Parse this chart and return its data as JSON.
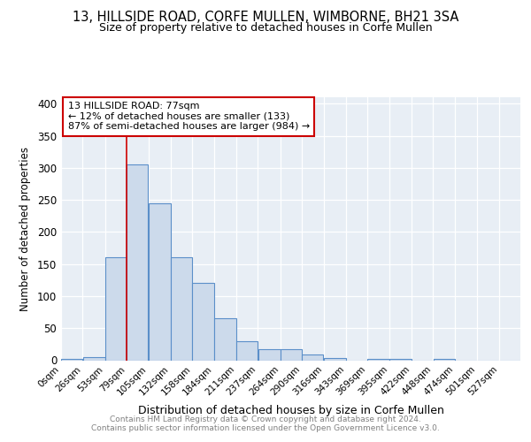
{
  "title1": "13, HILLSIDE ROAD, CORFE MULLEN, WIMBORNE, BH21 3SA",
  "title2": "Size of property relative to detached houses in Corfe Mullen",
  "xlabel": "Distribution of detached houses by size in Corfe Mullen",
  "ylabel": "Number of detached properties",
  "bar_labels": [
    "0sqm",
    "26sqm",
    "53sqm",
    "79sqm",
    "105sqm",
    "132sqm",
    "158sqm",
    "184sqm",
    "211sqm",
    "237sqm",
    "264sqm",
    "290sqm",
    "316sqm",
    "343sqm",
    "369sqm",
    "395sqm",
    "422sqm",
    "448sqm",
    "474sqm",
    "501sqm",
    "527sqm"
  ],
  "bar_values": [
    2,
    5,
    160,
    305,
    245,
    160,
    120,
    65,
    30,
    17,
    17,
    9,
    3,
    0,
    2,
    2,
    0,
    2,
    0,
    0,
    0
  ],
  "bar_color": "#ccdaeb",
  "bar_edge_color": "#5b8fc9",
  "vline_x": 79,
  "vline_color": "#cc0000",
  "annotation_text": "13 HILLSIDE ROAD: 77sqm\n← 12% of detached houses are smaller (133)\n87% of semi-detached houses are larger (984) →",
  "annotation_box_color": "#ffffff",
  "annotation_box_edge": "#cc0000",
  "ylim": [
    0,
    410
  ],
  "yticks": [
    0,
    50,
    100,
    150,
    200,
    250,
    300,
    350,
    400
  ],
  "background_color": "#ffffff",
  "plot_bg_color": "#e8eef5",
  "footer_line1": "Contains HM Land Registry data © Crown copyright and database right 2024.",
  "footer_line2": "Contains public sector information licensed under the Open Government Licence v3.0.",
  "bin_edges": [
    0,
    26,
    53,
    79,
    105,
    132,
    158,
    184,
    211,
    237,
    264,
    290,
    316,
    343,
    369,
    395,
    422,
    448,
    474,
    501,
    527,
    553
  ]
}
